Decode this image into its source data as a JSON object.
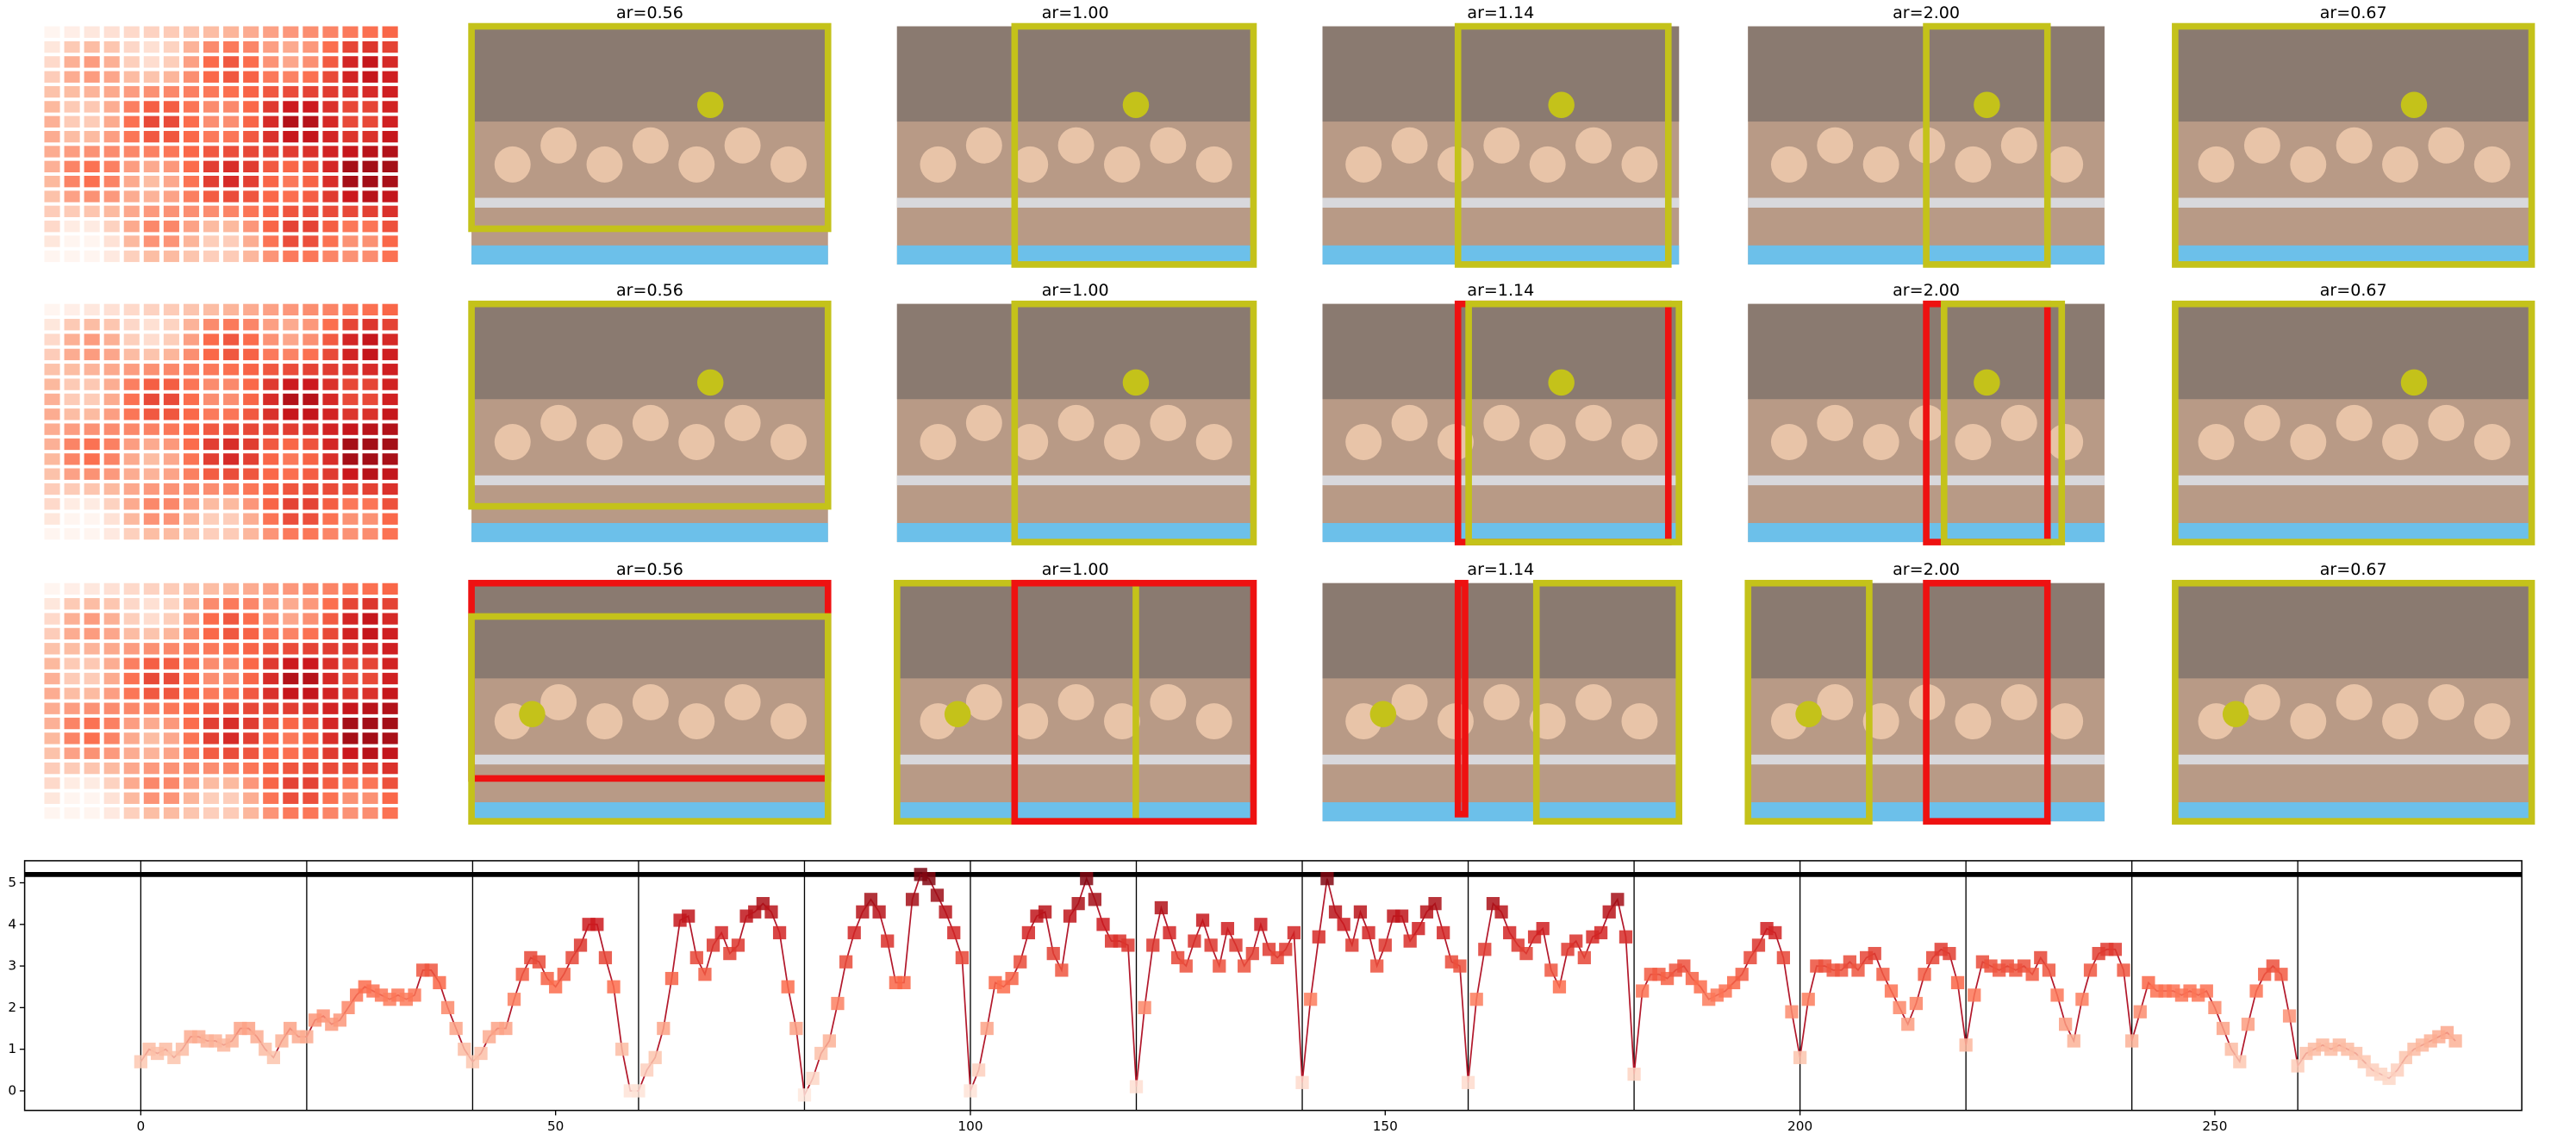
{
  "panels": {
    "titles": [
      [
        "ar=0.56",
        "ar=1.00",
        "ar=1.14",
        "ar=2.00",
        "ar=0.67"
      ],
      [
        "ar=0.56",
        "ar=1.00",
        "ar=1.14",
        "ar=2.00",
        "ar=0.67"
      ],
      [
        "ar=0.56",
        "ar=1.00",
        "ar=1.14",
        "ar=2.00",
        "ar=0.67"
      ]
    ]
  },
  "chart_data": {
    "type": "line",
    "x": [
      0,
      1,
      2,
      3,
      4,
      5,
      6,
      7,
      8,
      9,
      10,
      11,
      12,
      13,
      14,
      15,
      16,
      17,
      18,
      19,
      20,
      21,
      22,
      23,
      24,
      25,
      26,
      27,
      28,
      29,
      30,
      31,
      32,
      33,
      34,
      35,
      36,
      37,
      38,
      39,
      40,
      41,
      42,
      43,
      44,
      45,
      46,
      47,
      48,
      49,
      50,
      51,
      52,
      53,
      54,
      55,
      56,
      57,
      58,
      59,
      60,
      61,
      62,
      63,
      64,
      65,
      66,
      67,
      68,
      69,
      70,
      71,
      72,
      73,
      74,
      75,
      76,
      77,
      78,
      79,
      80,
      81,
      82,
      83,
      84,
      85,
      86,
      87,
      88,
      89,
      90,
      91,
      92,
      93,
      94,
      95,
      96,
      97,
      98,
      99,
      100,
      101,
      102,
      103,
      104,
      105,
      106,
      107,
      108,
      109,
      110,
      111,
      112,
      113,
      114,
      115,
      116,
      117,
      118,
      119,
      120,
      121,
      122,
      123,
      124,
      125,
      126,
      127,
      128,
      129,
      130,
      131,
      132,
      133,
      134,
      135,
      136,
      137,
      138,
      139,
      140,
      141,
      142,
      143,
      144,
      145,
      146,
      147,
      148,
      149,
      150,
      151,
      152,
      153,
      154,
      155,
      156,
      157,
      158,
      159,
      160,
      161,
      162,
      163,
      164,
      165,
      166,
      167,
      168,
      169,
      170,
      171,
      172,
      173,
      174,
      175,
      176,
      177,
      178,
      179,
      180,
      181,
      182,
      183,
      184,
      185,
      186,
      187,
      188,
      189,
      190,
      191,
      192,
      193,
      194,
      195,
      196,
      197,
      198,
      199,
      200,
      201,
      202,
      203,
      204,
      205,
      206,
      207,
      208,
      209,
      210,
      211,
      212,
      213,
      214,
      215,
      216,
      217,
      218,
      219,
      220,
      221,
      222,
      223,
      224,
      225,
      226,
      227,
      228,
      229,
      230,
      231,
      232,
      233,
      234,
      235,
      236,
      237,
      238,
      239,
      240,
      241,
      242,
      243,
      244,
      245,
      246,
      247,
      248,
      249,
      250,
      251,
      252,
      253,
      254,
      255,
      256,
      257,
      258,
      259,
      260,
      261,
      262,
      263,
      264,
      265,
      266,
      267,
      268,
      269,
      270,
      271,
      272,
      273,
      274,
      275,
      276,
      277,
      278,
      279
    ],
    "series": [
      {
        "color": "#b2182b",
        "values": [
          0.7,
          1.0,
          0.9,
          1.0,
          0.8,
          1.0,
          1.3,
          1.3,
          1.2,
          1.2,
          1.1,
          1.2,
          1.5,
          1.5,
          1.3,
          1.0,
          0.8,
          1.2,
          1.5,
          1.3,
          1.3,
          1.7,
          1.8,
          1.6,
          1.7,
          2.0,
          2.3,
          2.5,
          2.4,
          2.3,
          2.2,
          2.3,
          2.2,
          2.3,
          2.9,
          2.9,
          2.6,
          2.0,
          1.5,
          1.0,
          0.7,
          0.9,
          1.3,
          1.5,
          1.5,
          2.2,
          2.8,
          3.2,
          3.1,
          2.7,
          2.5,
          2.8,
          3.2,
          3.5,
          4.0,
          4.0,
          3.2,
          2.5,
          1.0,
          0.0,
          0.0,
          0.5,
          0.8,
          1.5,
          2.7,
          4.1,
          4.2,
          3.2,
          2.8,
          3.5,
          3.8,
          3.3,
          3.5,
          4.2,
          4.3,
          4.5,
          4.3,
          3.8,
          2.5,
          1.5,
          -0.1,
          0.3,
          0.9,
          1.2,
          2.1,
          3.1,
          3.8,
          4.3,
          4.6,
          4.3,
          3.6,
          2.6,
          2.6,
          4.6,
          5.2,
          5.1,
          4.7,
          4.3,
          3.8,
          3.2,
          0.0,
          0.5,
          1.5,
          2.6,
          2.5,
          2.7,
          3.1,
          3.8,
          4.2,
          4.3,
          3.3,
          2.9,
          4.2,
          4.5,
          5.1,
          4.6,
          4.0,
          3.6,
          3.6,
          3.5,
          0.1,
          2.0,
          3.5,
          4.4,
          3.8,
          3.2,
          3.0,
          3.6,
          4.1,
          3.5,
          3.0,
          3.9,
          3.5,
          3.0,
          3.3,
          4.0,
          3.4,
          3.2,
          3.4,
          3.8,
          0.2,
          2.2,
          3.7,
          5.1,
          4.3,
          4.0,
          3.5,
          4.3,
          3.8,
          3.0,
          3.5,
          4.2,
          4.2,
          3.6,
          3.9,
          4.3,
          4.5,
          3.8,
          3.1,
          3.0,
          0.2,
          2.2,
          3.4,
          4.5,
          4.3,
          3.8,
          3.5,
          3.3,
          3.7,
          3.9,
          2.9,
          2.5,
          3.4,
          3.6,
          3.2,
          3.7,
          3.8,
          4.3,
          4.6,
          3.7,
          0.4,
          2.4,
          2.8,
          2.8,
          2.7,
          2.9,
          3.0,
          2.7,
          2.5,
          2.2,
          2.3,
          2.4,
          2.6,
          2.8,
          3.2,
          3.5,
          3.9,
          3.8,
          3.2,
          1.9,
          0.8,
          2.2,
          3.0,
          3.0,
          2.9,
          2.9,
          3.1,
          2.9,
          3.2,
          3.3,
          2.8,
          2.4,
          2.0,
          1.6,
          2.1,
          2.8,
          3.2,
          3.4,
          3.3,
          2.6,
          1.1,
          2.3,
          3.1,
          3.0,
          2.9,
          3.0,
          2.9,
          3.0,
          2.8,
          3.2,
          2.9,
          2.3,
          1.6,
          1.2,
          2.2,
          2.9,
          3.3,
          3.4,
          3.4,
          2.9,
          1.2,
          1.9,
          2.6,
          2.4,
          2.4,
          2.4,
          2.3,
          2.4,
          2.3,
          2.4,
          2.0,
          1.5,
          1.0,
          0.7,
          1.6,
          2.4,
          2.8,
          3.0,
          2.8,
          1.8,
          0.6,
          0.9,
          1.0,
          1.1,
          1.0,
          1.1,
          1.0,
          0.9,
          0.7,
          0.5,
          0.4,
          0.3,
          0.5,
          0.8,
          1.0,
          1.1,
          1.2,
          1.3,
          1.4,
          1.2
        ]
      }
    ],
    "colormap": [
      "#fff5f0",
      "#fcbba1",
      "#fb6a4a",
      "#cb181d",
      "#67000d"
    ],
    "xlim": [
      -14,
      287
    ],
    "ylim": [
      -0.47,
      5.53
    ],
    "xticks": [
      0,
      50,
      100,
      150,
      200,
      250
    ],
    "yticks": [
      0,
      1,
      2,
      3,
      4,
      5
    ],
    "vlines": [
      0,
      20,
      40,
      60,
      80,
      100,
      120,
      140,
      160,
      180,
      200,
      220,
      240,
      260
    ],
    "hline": 5.2
  }
}
